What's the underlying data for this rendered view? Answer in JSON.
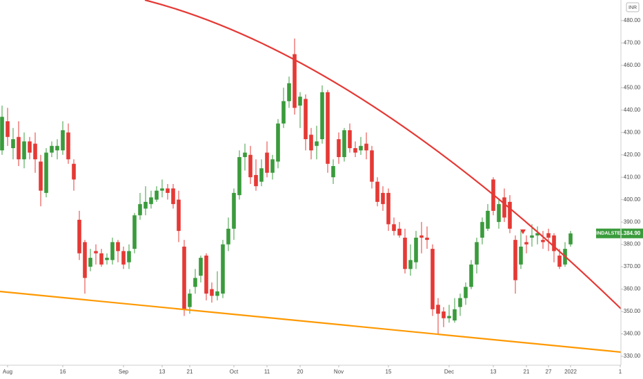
{
  "chart_data": {
    "type": "candlestick",
    "currency": "INR",
    "up_color": "#3a9b3c",
    "down_color": "#e53935",
    "open": [
      422,
      435,
      423,
      428,
      418,
      426,
      425,
      417,
      403,
      421,
      422,
      422,
      430,
      416,
      391,
      381,
      370,
      377,
      376,
      373,
      373,
      381,
      377,
      372,
      378,
      393,
      396,
      398,
      400,
      404,
      405,
      405,
      400,
      379,
      352,
      361,
      366,
      375,
      360,
      357,
      358,
      380,
      387,
      402,
      419,
      420,
      411,
      408,
      421,
      412,
      417,
      434,
      444,
      465,
      442,
      445,
      429,
      424,
      427,
      448,
      410,
      427,
      419,
      431,
      423,
      422,
      425,
      422,
      408,
      403,
      403,
      389,
      387,
      383,
      369,
      372,
      384,
      383,
      378,
      353,
      350,
      347,
      346,
      352,
      356,
      361,
      371,
      383,
      387,
      409,
      390,
      401,
      399,
      382,
      371,
      381,
      383,
      384,
      382,
      385,
      384,
      375,
      371,
      380
    ],
    "high": [
      442,
      441,
      432,
      435,
      430,
      428,
      430,
      420,
      423,
      426,
      427,
      435,
      434,
      418,
      395,
      382,
      378,
      380,
      378,
      376,
      383,
      382,
      379,
      380,
      394,
      403,
      406,
      404,
      406,
      409,
      407,
      407,
      404,
      382,
      360,
      369,
      375,
      376,
      363,
      368,
      382,
      392,
      405,
      422,
      425,
      424,
      418,
      418,
      426,
      420,
      436,
      450,
      455,
      472,
      448,
      447,
      432,
      433,
      451,
      449,
      418,
      430,
      432,
      434,
      426,
      428,
      430,
      424,
      410,
      406,
      405,
      392,
      390,
      387,
      380,
      386,
      390,
      388,
      380,
      356,
      352,
      353,
      356,
      358,
      363,
      373,
      383,
      392,
      398,
      410,
      400,
      405,
      402,
      384,
      386,
      384,
      389,
      388,
      386,
      387,
      385,
      378,
      381,
      386
    ],
    "low": [
      420,
      424,
      418,
      415,
      414,
      418,
      412,
      397,
      401,
      419,
      418,
      420,
      416,
      404,
      373,
      358,
      368,
      371,
      370,
      371,
      371,
      372,
      369,
      369,
      376,
      391,
      393,
      396,
      399,
      401,
      400,
      396,
      381,
      348,
      349,
      358,
      363,
      355,
      354,
      355,
      356,
      377,
      382,
      400,
      413,
      407,
      404,
      406,
      410,
      409,
      414,
      432,
      441,
      438,
      432,
      422,
      418,
      418,
      425,
      412,
      407,
      416,
      417,
      421,
      419,
      420,
      418,
      405,
      397,
      395,
      386,
      384,
      383,
      367,
      366,
      369,
      376,
      378,
      348,
      340,
      343,
      345,
      345,
      348,
      353,
      360,
      367,
      380,
      386,
      393,
      387,
      390,
      385,
      358,
      369,
      376,
      379,
      380,
      378,
      377,
      372,
      369,
      370,
      379
    ],
    "close": [
      437,
      428,
      427,
      418,
      426,
      421,
      418,
      404,
      421,
      424,
      424,
      431,
      418,
      409,
      376,
      365,
      374,
      376,
      371,
      374,
      381,
      377,
      371,
      377,
      393,
      398,
      399,
      401,
      404,
      405,
      403,
      398,
      386,
      351,
      358,
      365,
      374,
      358,
      357,
      359,
      380,
      387,
      403,
      419,
      421,
      410,
      406,
      414,
      412,
      418,
      434,
      444,
      452,
      441,
      446,
      427,
      422,
      426,
      448,
      416,
      415,
      419,
      431,
      423,
      421,
      424,
      422,
      408,
      399,
      398,
      389,
      386,
      384,
      369,
      373,
      383,
      383,
      382,
      351,
      349,
      347,
      348,
      351,
      356,
      361,
      371,
      381,
      390,
      395,
      395,
      398,
      392,
      387,
      364,
      379,
      380,
      384,
      385,
      381,
      383,
      377,
      370,
      378,
      384.9
    ],
    "xlim": [
      -0.375,
      112.125
    ],
    "xticks": [
      {
        "value": 1,
        "label": "Aug"
      },
      {
        "value": 11,
        "label": "16"
      },
      {
        "value": 22,
        "label": "Sep"
      },
      {
        "value": 29,
        "label": "13"
      },
      {
        "value": 34,
        "label": "21"
      },
      {
        "value": 42,
        "label": "Oct"
      },
      {
        "value": 48,
        "label": "11"
      },
      {
        "value": 54,
        "label": "20"
      },
      {
        "value": 61,
        "label": "Nov"
      },
      {
        "value": 70,
        "label": "15"
      },
      {
        "value": 81,
        "label": "Dec"
      },
      {
        "value": 89,
        "label": "13"
      },
      {
        "value": 95,
        "label": "21"
      },
      {
        "value": 99,
        "label": "27"
      },
      {
        "value": 103,
        "label": "2022"
      },
      {
        "value": 112,
        "label": "1"
      }
    ],
    "ylim": [
      326,
      489.2
    ],
    "yticks": [
      {
        "value": 480,
        "label": "480.00"
      },
      {
        "value": 470,
        "label": "470.00"
      },
      {
        "value": 460,
        "label": "460.00"
      },
      {
        "value": 450,
        "label": "450.00"
      },
      {
        "value": 440,
        "label": "440.00"
      },
      {
        "value": 430,
        "label": "430.00"
      },
      {
        "value": 420,
        "label": "420.00"
      },
      {
        "value": 410,
        "label": "410.00"
      },
      {
        "value": 400,
        "label": "400.00"
      },
      {
        "value": 390,
        "label": "390.00"
      },
      {
        "value": 380,
        "label": "380.00"
      },
      {
        "value": 370,
        "label": "370.00"
      },
      {
        "value": 360,
        "label": "360.00"
      },
      {
        "value": 350,
        "label": "350.00"
      },
      {
        "value": 340,
        "label": "340.00"
      },
      {
        "value": 330,
        "label": "330.00"
      }
    ],
    "last_price": {
      "symbol": "JINDALSTEL",
      "value": 384.9,
      "label": "384.90"
    }
  }
}
